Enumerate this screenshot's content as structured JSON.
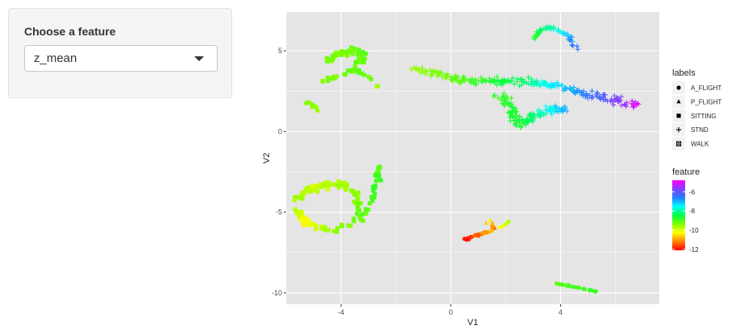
{
  "sidebar": {
    "label": "Choose a feature",
    "select_value": "z_mean"
  },
  "chart_data": {
    "type": "scatter",
    "title": "",
    "xlabel": "V1",
    "ylabel": "V2",
    "xlim": [
      -6,
      7.6
    ],
    "ylim": [
      -10.7,
      7.4
    ],
    "x_ticks": [
      -4,
      0,
      4
    ],
    "y_ticks": [
      -10,
      -5,
      0,
      5
    ],
    "x_tick_labels": [
      "-4",
      "0",
      "4"
    ],
    "y_tick_labels": [
      "-10",
      "-5",
      "0",
      "5"
    ],
    "grid": true,
    "panel_background": "#e5e5e5",
    "shape_legend": {
      "title": "labels",
      "entries": [
        {
          "label": "A_FLIGHT",
          "symbol": "circle"
        },
        {
          "label": "P_FLIGHT",
          "symbol": "triangle"
        },
        {
          "label": "SITTING",
          "symbol": "square"
        },
        {
          "label": "STND",
          "symbol": "plus"
        },
        {
          "label": "WALK",
          "symbol": "boxed-x"
        }
      ]
    },
    "color_legend": {
      "title": "feature",
      "breaks": [
        -6,
        -8,
        -10,
        -12
      ],
      "break_labels": [
        "-6",
        "-8",
        "-10",
        "-12"
      ],
      "range": [
        -12.1,
        -4.8
      ],
      "colors": [
        "#ff0000",
        "#ff8000",
        "#ffff00",
        "#80ff00",
        "#00ff40",
        "#00ffff",
        "#2080ff",
        "#8040ff",
        "#ff00ff"
      ]
    },
    "clusters": [
      {
        "label": "STND",
        "path": [
          [
            -1.3,
            3.9
          ],
          [
            0.0,
            3.3
          ],
          [
            1.0,
            3.1
          ],
          [
            2.0,
            3.1
          ],
          [
            3.0,
            3.1
          ],
          [
            4.0,
            2.8
          ],
          [
            5.0,
            2.3
          ],
          [
            6.0,
            2.0
          ],
          [
            6.8,
            1.5
          ]
        ],
        "spread": 0.35,
        "n": 260,
        "feature": [
          -9.5,
          -9.2,
          -8.8,
          -8.5,
          -8.0,
          -7.2,
          -6.5,
          -5.8,
          -4.8
        ]
      },
      {
        "label": "STND",
        "path": [
          [
            1.8,
            2.4
          ],
          [
            2.2,
            1.3
          ],
          [
            2.5,
            0.4
          ],
          [
            3.0,
            0.9
          ],
          [
            3.6,
            1.4
          ],
          [
            4.2,
            1.4
          ]
        ],
        "spread": 0.35,
        "n": 140,
        "feature": [
          -8.8,
          -8.7,
          -8.6,
          -8.2,
          -7.6,
          -6.9
        ]
      },
      {
        "label": "STND",
        "path": [
          [
            3.0,
            5.8
          ],
          [
            3.3,
            6.4
          ],
          [
            3.8,
            6.4
          ],
          [
            4.3,
            5.9
          ],
          [
            4.6,
            5.1
          ]
        ],
        "spread": 0.14,
        "n": 50,
        "feature": [
          -8.8,
          -8.3,
          -7.8,
          -7.1,
          -6.3
        ]
      },
      {
        "label": "SITTING",
        "path": [
          [
            -4.6,
            4.3
          ],
          [
            -4.0,
            4.8
          ],
          [
            -3.6,
            5.0
          ],
          [
            -3.2,
            4.8
          ],
          [
            -3.4,
            4.1
          ]
        ],
        "spread": 0.3,
        "n": 55,
        "feature": [
          -9.2,
          -9.4,
          -9.2,
          -9.1,
          -9.3
        ]
      },
      {
        "label": "SITTING",
        "path": [
          [
            -4.8,
            3.0
          ],
          [
            -4.2,
            3.4
          ],
          [
            -3.5,
            3.8
          ],
          [
            -3.0,
            3.4
          ],
          [
            -2.7,
            2.8
          ]
        ],
        "spread": 0.13,
        "n": 28,
        "feature": [
          -9.4,
          -9.3,
          -9.1,
          -9.2,
          -9.5
        ]
      },
      {
        "label": "A_FLIGHT",
        "path": [
          [
            -5.4,
            1.7
          ],
          [
            -5.1,
            1.8
          ],
          [
            -4.8,
            1.2
          ]
        ],
        "spread": 0.1,
        "n": 10,
        "feature": [
          -9.3,
          -9.4,
          -9.5
        ]
      },
      {
        "label": "SITTING",
        "path": [
          [
            -5.7,
            -4.2
          ],
          [
            -4.9,
            -3.4
          ],
          [
            -4.0,
            -3.2
          ],
          [
            -3.4,
            -4.0
          ],
          [
            -3.3,
            -5.4
          ],
          [
            -4.3,
            -6.2
          ],
          [
            -5.3,
            -5.7
          ],
          [
            -5.6,
            -4.8
          ]
        ],
        "spread": 0.25,
        "n": 130,
        "feature": [
          -9.6,
          -9.9,
          -9.7,
          -9.4,
          -9.2,
          -9.5,
          -10.3,
          -9.8
        ]
      },
      {
        "label": "SITTING",
        "path": [
          [
            -3.3,
            -5.5
          ],
          [
            -2.9,
            -4.3
          ],
          [
            -2.7,
            -3.1
          ],
          [
            -2.6,
            -2.1
          ]
        ],
        "spread": 0.18,
        "n": 30,
        "feature": [
          -9.2,
          -9.0,
          -8.9,
          -9.0
        ]
      },
      {
        "label": "A_FLIGHT",
        "path": [
          [
            0.5,
            -6.7
          ],
          [
            1.0,
            -6.4
          ],
          [
            1.6,
            -6.1
          ],
          [
            2.2,
            -5.5
          ]
        ],
        "spread": 0.08,
        "n": 26,
        "feature": [
          -12.0,
          -11.4,
          -10.4,
          -9.6
        ]
      },
      {
        "label": "P_FLIGHT",
        "path": [
          [
            1.2,
            -5.7
          ],
          [
            1.4,
            -5.4
          ],
          [
            1.6,
            -6.0
          ]
        ],
        "spread": 0.12,
        "n": 12,
        "feature": [
          -10.8,
          -10.2,
          -11.3
        ]
      },
      {
        "label": "A_FLIGHT",
        "path": [
          [
            3.8,
            -9.4
          ],
          [
            4.4,
            -9.6
          ],
          [
            5.3,
            -9.9
          ]
        ],
        "spread": 0.06,
        "n": 24,
        "feature": [
          -9.1,
          -8.9,
          -8.9
        ]
      }
    ]
  }
}
